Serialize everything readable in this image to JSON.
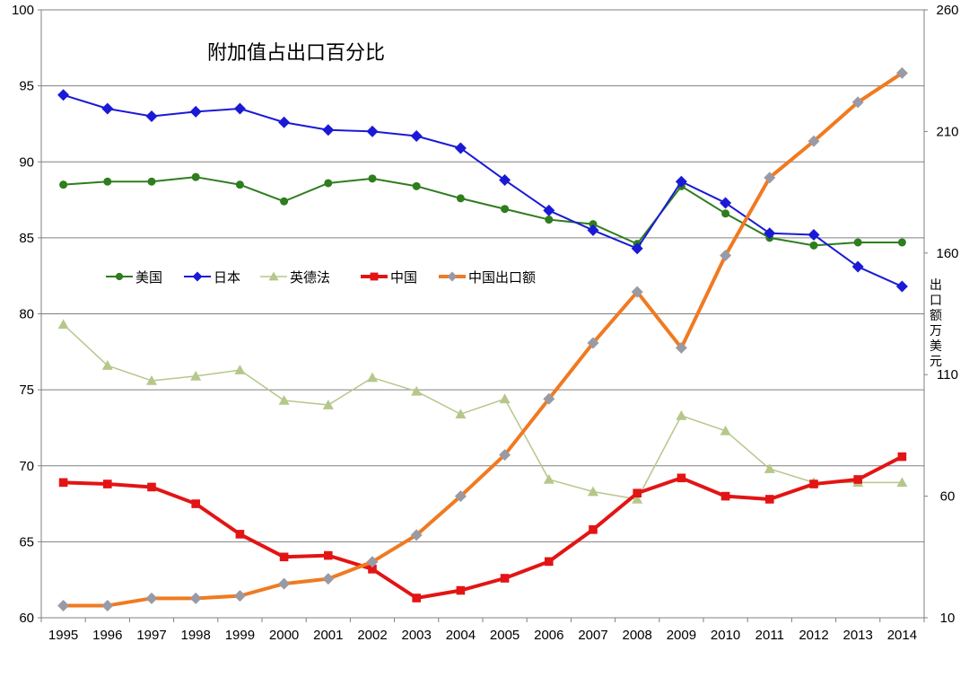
{
  "chart_data": {
    "type": "line",
    "title": "附加值占出口百分比",
    "x": [
      "1995",
      "1996",
      "1997",
      "1998",
      "1999",
      "2000",
      "2001",
      "2002",
      "2003",
      "2004",
      "2005",
      "2006",
      "2007",
      "2008",
      "2009",
      "2010",
      "2011",
      "2012",
      "2013",
      "2014"
    ],
    "y_left": {
      "min": 60,
      "max": 100,
      "ticks": [
        "60",
        "65",
        "70",
        "75",
        "80",
        "85",
        "90",
        "95",
        "100"
      ]
    },
    "y_right": {
      "min": 10,
      "max": 260,
      "ticks": [
        "10",
        "60",
        "110",
        "160",
        "210",
        "260"
      ],
      "label": "出口额万美元"
    },
    "grid": true,
    "legend_position": "middle-left",
    "series": [
      {
        "name": "美国",
        "axis": "left",
        "color": "#2e7d1e",
        "marker": "circle",
        "width": 2,
        "values": [
          88.5,
          88.7,
          88.7,
          89.0,
          88.5,
          87.4,
          88.6,
          88.9,
          88.4,
          87.6,
          86.9,
          86.2,
          85.9,
          84.6,
          88.4,
          86.6,
          85.0,
          84.5,
          84.7,
          84.7
        ]
      },
      {
        "name": "日本",
        "axis": "left",
        "color": "#1a1ad6",
        "marker": "diamond",
        "width": 2,
        "values": [
          94.4,
          93.5,
          93.0,
          93.3,
          93.5,
          92.6,
          92.1,
          92.0,
          91.7,
          90.9,
          88.8,
          86.8,
          85.5,
          84.3,
          88.7,
          87.3,
          85.3,
          85.2,
          83.1,
          81.8
        ]
      },
      {
        "name": "英德法",
        "axis": "left",
        "color": "#b5c78a",
        "marker": "triangle",
        "width": 1.5,
        "values": [
          79.3,
          76.6,
          75.6,
          75.9,
          76.3,
          74.3,
          74.0,
          75.8,
          74.9,
          73.4,
          74.4,
          69.1,
          68.3,
          67.8,
          73.3,
          72.3,
          69.8,
          68.9,
          68.9,
          68.9
        ]
      },
      {
        "name": "中国",
        "axis": "left",
        "color": "#e31414",
        "marker": "square",
        "width": 4,
        "values": [
          68.9,
          68.8,
          68.6,
          67.5,
          65.5,
          64.0,
          64.1,
          63.2,
          61.3,
          61.8,
          62.6,
          63.7,
          65.8,
          68.2,
          69.2,
          68.0,
          67.8,
          68.8,
          69.1,
          70.6
        ]
      },
      {
        "name": "中国出口额",
        "axis": "right",
        "color": "#f07a21",
        "marker": "diamond",
        "markerColor": "#9a9aa5",
        "width": 4,
        "values": [
          15,
          15,
          18,
          18,
          19,
          24,
          26,
          33,
          44,
          60,
          77,
          100,
          123,
          144,
          121,
          159,
          191,
          206,
          222,
          234
        ]
      }
    ]
  }
}
